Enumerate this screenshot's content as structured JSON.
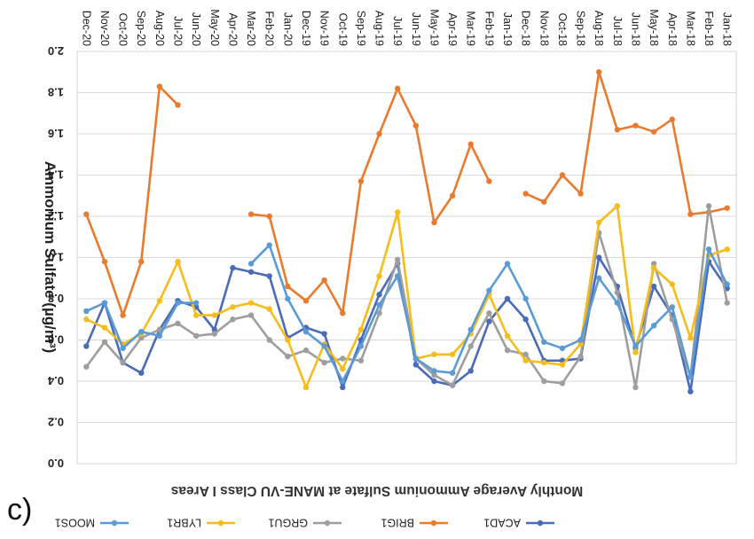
{
  "panel_label": "c)",
  "chart_data": {
    "type": "line",
    "orientation": "rotated-180",
    "title": "Monthly Average Ammonium Sulfate at MANE-VU Class I Areas",
    "ylabel": "Ammonium Sulfate (µg/m³)",
    "xlabel": "",
    "ylim": [
      0,
      2.0
    ],
    "yticks": [
      "0.0",
      "0.2",
      "0.4",
      "0.6",
      "0.8",
      "1.0",
      "1.2",
      "1.4",
      "1.6",
      "1.8",
      "2.0"
    ],
    "grid": true,
    "legend_position": "bottom",
    "categories": [
      "Jan-18",
      "Feb-18",
      "Mar-18",
      "Apr-18",
      "May-18",
      "Jun-18",
      "Jul-18",
      "Aug-18",
      "Sep-18",
      "Oct-18",
      "Nov-18",
      "Dec-18",
      "Jan-19",
      "Feb-19",
      "Mar-19",
      "Apr-19",
      "May-19",
      "Jun-19",
      "Jul-19",
      "Aug-19",
      "Sep-19",
      "Oct-19",
      "Nov-19",
      "Dec-19",
      "Jan-20",
      "Feb-20",
      "Mar-20",
      "Apr-20",
      "May-20",
      "Jun-20",
      "Jul-20",
      "Aug-20",
      "Sep-20",
      "Oct-20",
      "Nov-20",
      "Dec-20"
    ],
    "series": [
      {
        "name": "ACAD1",
        "color": "#4a6bb8",
        "values": [
          0.85,
          0.98,
          0.35,
          0.72,
          0.86,
          0.56,
          0.86,
          1.0,
          0.51,
          0.5,
          0.5,
          0.7,
          0.8,
          0.69,
          0.45,
          0.38,
          0.4,
          0.48,
          0.97,
          0.82,
          0.6,
          0.37,
          0.63,
          0.66,
          0.61,
          0.91,
          0.93,
          0.95,
          0.65,
          0.76,
          0.79,
          0.65,
          0.44,
          0.49,
          0.78,
          0.57
        ]
      },
      {
        "name": "BRIG1",
        "color": "#e97a2e",
        "values": [
          1.24,
          1.22,
          1.21,
          1.67,
          1.61,
          1.64,
          1.62,
          1.9,
          1.31,
          1.4,
          1.27,
          1.31,
          null,
          1.37,
          1.55,
          1.3,
          1.17,
          1.64,
          1.82,
          1.6,
          1.37,
          0.73,
          0.89,
          0.79,
          0.86,
          1.2,
          1.21,
          null,
          null,
          null,
          1.74,
          1.83,
          0.98,
          0.72,
          0.98,
          1.21
        ]
      },
      {
        "name": "GRGU1",
        "color": "#9e9e9e",
        "values": [
          0.78,
          1.25,
          0.42,
          0.7,
          0.97,
          0.37,
          0.83,
          1.12,
          0.52,
          0.39,
          0.4,
          0.53,
          0.55,
          0.73,
          0.57,
          0.38,
          0.43,
          0.51,
          0.99,
          0.73,
          0.5,
          0.51,
          0.49,
          0.55,
          0.52,
          0.6,
          0.72,
          0.7,
          0.63,
          0.62,
          0.68,
          0.65,
          0.61,
          0.49,
          0.59,
          0.47
        ]
      },
      {
        "name": "LYBR1",
        "color": "#f5bd1b",
        "values": [
          1.04,
          1.01,
          0.61,
          0.87,
          0.95,
          0.54,
          1.25,
          1.17,
          0.58,
          0.48,
          0.49,
          0.5,
          0.62,
          0.82,
          0.63,
          0.53,
          0.53,
          0.51,
          1.22,
          0.91,
          0.65,
          0.46,
          0.58,
          0.37,
          0.6,
          0.75,
          0.78,
          0.76,
          0.72,
          0.72,
          0.98,
          0.79,
          0.63,
          0.58,
          0.66,
          0.7
        ]
      },
      {
        "name": "MOOS1",
        "color": "#5b9bd5",
        "values": [
          0.87,
          1.04,
          0.42,
          0.76,
          0.67,
          0.57,
          0.78,
          0.9,
          0.6,
          0.56,
          0.59,
          0.8,
          0.97,
          0.84,
          0.65,
          0.44,
          0.45,
          0.51,
          0.91,
          0.77,
          0.57,
          0.4,
          0.57,
          0.64,
          0.8,
          1.06,
          0.97,
          null,
          null,
          0.78,
          0.78,
          0.62,
          0.64,
          0.56,
          0.78,
          0.74
        ]
      }
    ]
  }
}
